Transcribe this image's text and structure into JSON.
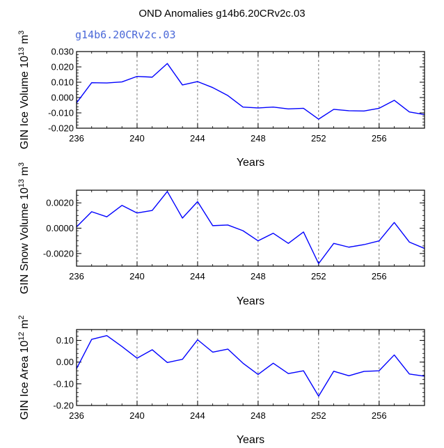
{
  "title": "OND Anomalies g14b6.20CRv2c.03",
  "series_label": "g14b6.20CRv2c.03",
  "colors": {
    "line": "#0000ff",
    "axis": "#000000",
    "grid": "#555555"
  },
  "chart_data": [
    {
      "type": "line",
      "title": "OND Anomalies g14b6.20CRv2c.03",
      "xlabel": "Years",
      "ylabel_main": "GIN Ice Volume 10",
      "ylabel_exp": "13",
      "ylabel_unit": " m",
      "ylabel_unit_exp": "3",
      "xlim": [
        236,
        259
      ],
      "ylim": [
        -0.02,
        0.03
      ],
      "xticks": [
        236,
        240,
        244,
        248,
        252,
        256
      ],
      "xtick_labels": [
        "236",
        "240",
        "244",
        "248",
        "252",
        "256"
      ],
      "yticks": [
        0.03,
        0.02,
        0.01,
        0.0,
        -0.01,
        -0.02
      ],
      "ytick_labels": [
        "0.030",
        "0.020",
        "0.010",
        "0.000",
        "-0.010",
        "-0.020"
      ],
      "grid_x": [
        240,
        244,
        248,
        252,
        256
      ],
      "x": [
        236,
        237,
        238,
        239,
        240,
        241,
        242,
        243,
        244,
        245,
        246,
        247,
        248,
        249,
        250,
        251,
        252,
        253,
        254,
        255,
        256,
        257,
        258,
        259
      ],
      "values": [
        -0.0035,
        0.0097,
        0.0095,
        0.0102,
        0.0138,
        0.0133,
        0.0222,
        0.0082,
        0.0104,
        0.0065,
        0.0013,
        -0.0062,
        -0.0068,
        -0.0062,
        -0.0074,
        -0.007,
        -0.0141,
        -0.0077,
        -0.0086,
        -0.0088,
        -0.007,
        -0.0018,
        -0.0094,
        -0.0111
      ]
    },
    {
      "type": "line",
      "xlabel": "Years",
      "ylabel_main": "GIN Snow Volume 10",
      "ylabel_exp": "13",
      "ylabel_unit": " m",
      "ylabel_unit_exp": "3",
      "xlim": [
        236,
        259
      ],
      "ylim": [
        -0.003,
        0.003
      ],
      "xticks": [
        236,
        240,
        244,
        248,
        252,
        256
      ],
      "xtick_labels": [
        "236",
        "240",
        "244",
        "248",
        "252",
        "256"
      ],
      "yticks": [
        0.002,
        0.0,
        -0.002
      ],
      "ytick_labels": [
        "0.0020",
        "0.0000",
        "-0.0020"
      ],
      "grid_x": [
        240,
        244,
        248,
        252,
        256
      ],
      "x": [
        236,
        237,
        238,
        239,
        240,
        241,
        242,
        243,
        244,
        245,
        246,
        247,
        248,
        249,
        250,
        251,
        252,
        253,
        254,
        255,
        256,
        257,
        258,
        259
      ],
      "values": [
        0.0001,
        0.0013,
        0.0009,
        0.0018,
        0.0012,
        0.0014,
        0.0029,
        0.0008,
        0.0021,
        0.0002,
        0.00025,
        -0.0002,
        -0.001,
        -0.0004,
        -0.0012,
        -0.0003,
        -0.0028,
        -0.0012,
        -0.0015,
        -0.0013,
        -0.001,
        0.00045,
        -0.0011,
        -0.0016
      ]
    },
    {
      "type": "line",
      "xlabel": "Years",
      "ylabel_main": "GIN Ice Area 10",
      "ylabel_exp": "12",
      "ylabel_unit": " m",
      "ylabel_unit_exp": "2",
      "xlim": [
        236,
        259
      ],
      "ylim": [
        -0.2,
        0.15
      ],
      "xticks": [
        236,
        240,
        244,
        248,
        252,
        256
      ],
      "xtick_labels": [
        "236",
        "240",
        "244",
        "248",
        "252",
        "256"
      ],
      "yticks": [
        0.1,
        0.0,
        -0.1,
        -0.2
      ],
      "ytick_labels": [
        "0.10",
        "0.00",
        "-0.10",
        "-0.20"
      ],
      "grid_x": [
        240,
        244,
        248,
        252,
        256
      ],
      "x": [
        236,
        237,
        238,
        239,
        240,
        241,
        242,
        243,
        244,
        245,
        246,
        247,
        248,
        249,
        250,
        251,
        252,
        253,
        254,
        255,
        256,
        257,
        258,
        259
      ],
      "values": [
        -0.03,
        0.105,
        0.122,
        0.072,
        0.018,
        0.057,
        -0.002,
        0.013,
        0.103,
        0.046,
        0.06,
        -0.005,
        -0.057,
        -0.005,
        -0.053,
        -0.04,
        -0.157,
        -0.042,
        -0.063,
        -0.043,
        -0.04,
        0.033,
        -0.055,
        -0.065
      ]
    }
  ]
}
